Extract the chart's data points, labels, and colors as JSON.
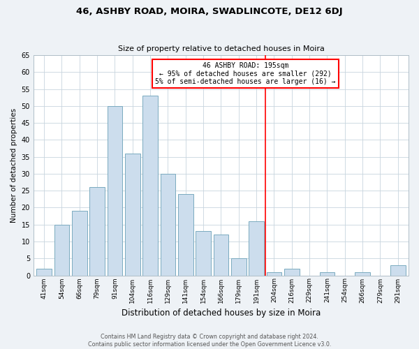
{
  "title": "46, ASHBY ROAD, MOIRA, SWADLINCOTE, DE12 6DJ",
  "subtitle": "Size of property relative to detached houses in Moira",
  "xlabel": "Distribution of detached houses by size in Moira",
  "ylabel": "Number of detached properties",
  "bar_labels": [
    "41sqm",
    "54sqm",
    "66sqm",
    "79sqm",
    "91sqm",
    "104sqm",
    "116sqm",
    "129sqm",
    "141sqm",
    "154sqm",
    "166sqm",
    "179sqm",
    "191sqm",
    "204sqm",
    "216sqm",
    "229sqm",
    "241sqm",
    "254sqm",
    "266sqm",
    "279sqm",
    "291sqm"
  ],
  "bar_values": [
    2,
    15,
    19,
    26,
    50,
    36,
    53,
    30,
    24,
    13,
    12,
    5,
    16,
    1,
    2,
    0,
    1,
    0,
    1,
    0,
    3
  ],
  "bar_color": "#ccdded",
  "bar_edge_color": "#7aaabf",
  "annotation_title": "46 ASHBY ROAD: 195sqm",
  "annotation_line1": "← 95% of detached houses are smaller (292)",
  "annotation_line2": "5% of semi-detached houses are larger (16) →",
  "red_line_x": 12.5,
  "ylim": [
    0,
    65
  ],
  "yticks": [
    0,
    5,
    10,
    15,
    20,
    25,
    30,
    35,
    40,
    45,
    50,
    55,
    60,
    65
  ],
  "footer_line1": "Contains HM Land Registry data © Crown copyright and database right 2024.",
  "footer_line2": "Contains public sector information licensed under the Open Government Licence v3.0.",
  "bg_color": "#eef2f6",
  "plot_bg_color": "#ffffff"
}
